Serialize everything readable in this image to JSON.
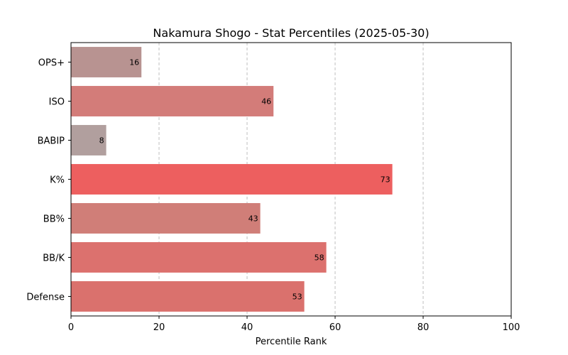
{
  "chart_data": {
    "type": "bar",
    "orientation": "horizontal",
    "title": "Nakamura Shogo - Stat Percentiles (2025-05-30)",
    "xlabel": "Percentile Rank",
    "ylabel": "",
    "xlim": [
      0,
      100
    ],
    "xticks": [
      0,
      20,
      40,
      60,
      80,
      100
    ],
    "grid": "x-dashed",
    "categories": [
      "OPS+",
      "ISO",
      "BABIP",
      "K%",
      "BB%",
      "BB/K",
      "Defense"
    ],
    "values": [
      16,
      46,
      8,
      73,
      43,
      58,
      53
    ],
    "colors": [
      "#b89391",
      "#d37c79",
      "#b19f9e",
      "#ed5f5f",
      "#d07e78",
      "#dc716e",
      "#da716d"
    ]
  }
}
